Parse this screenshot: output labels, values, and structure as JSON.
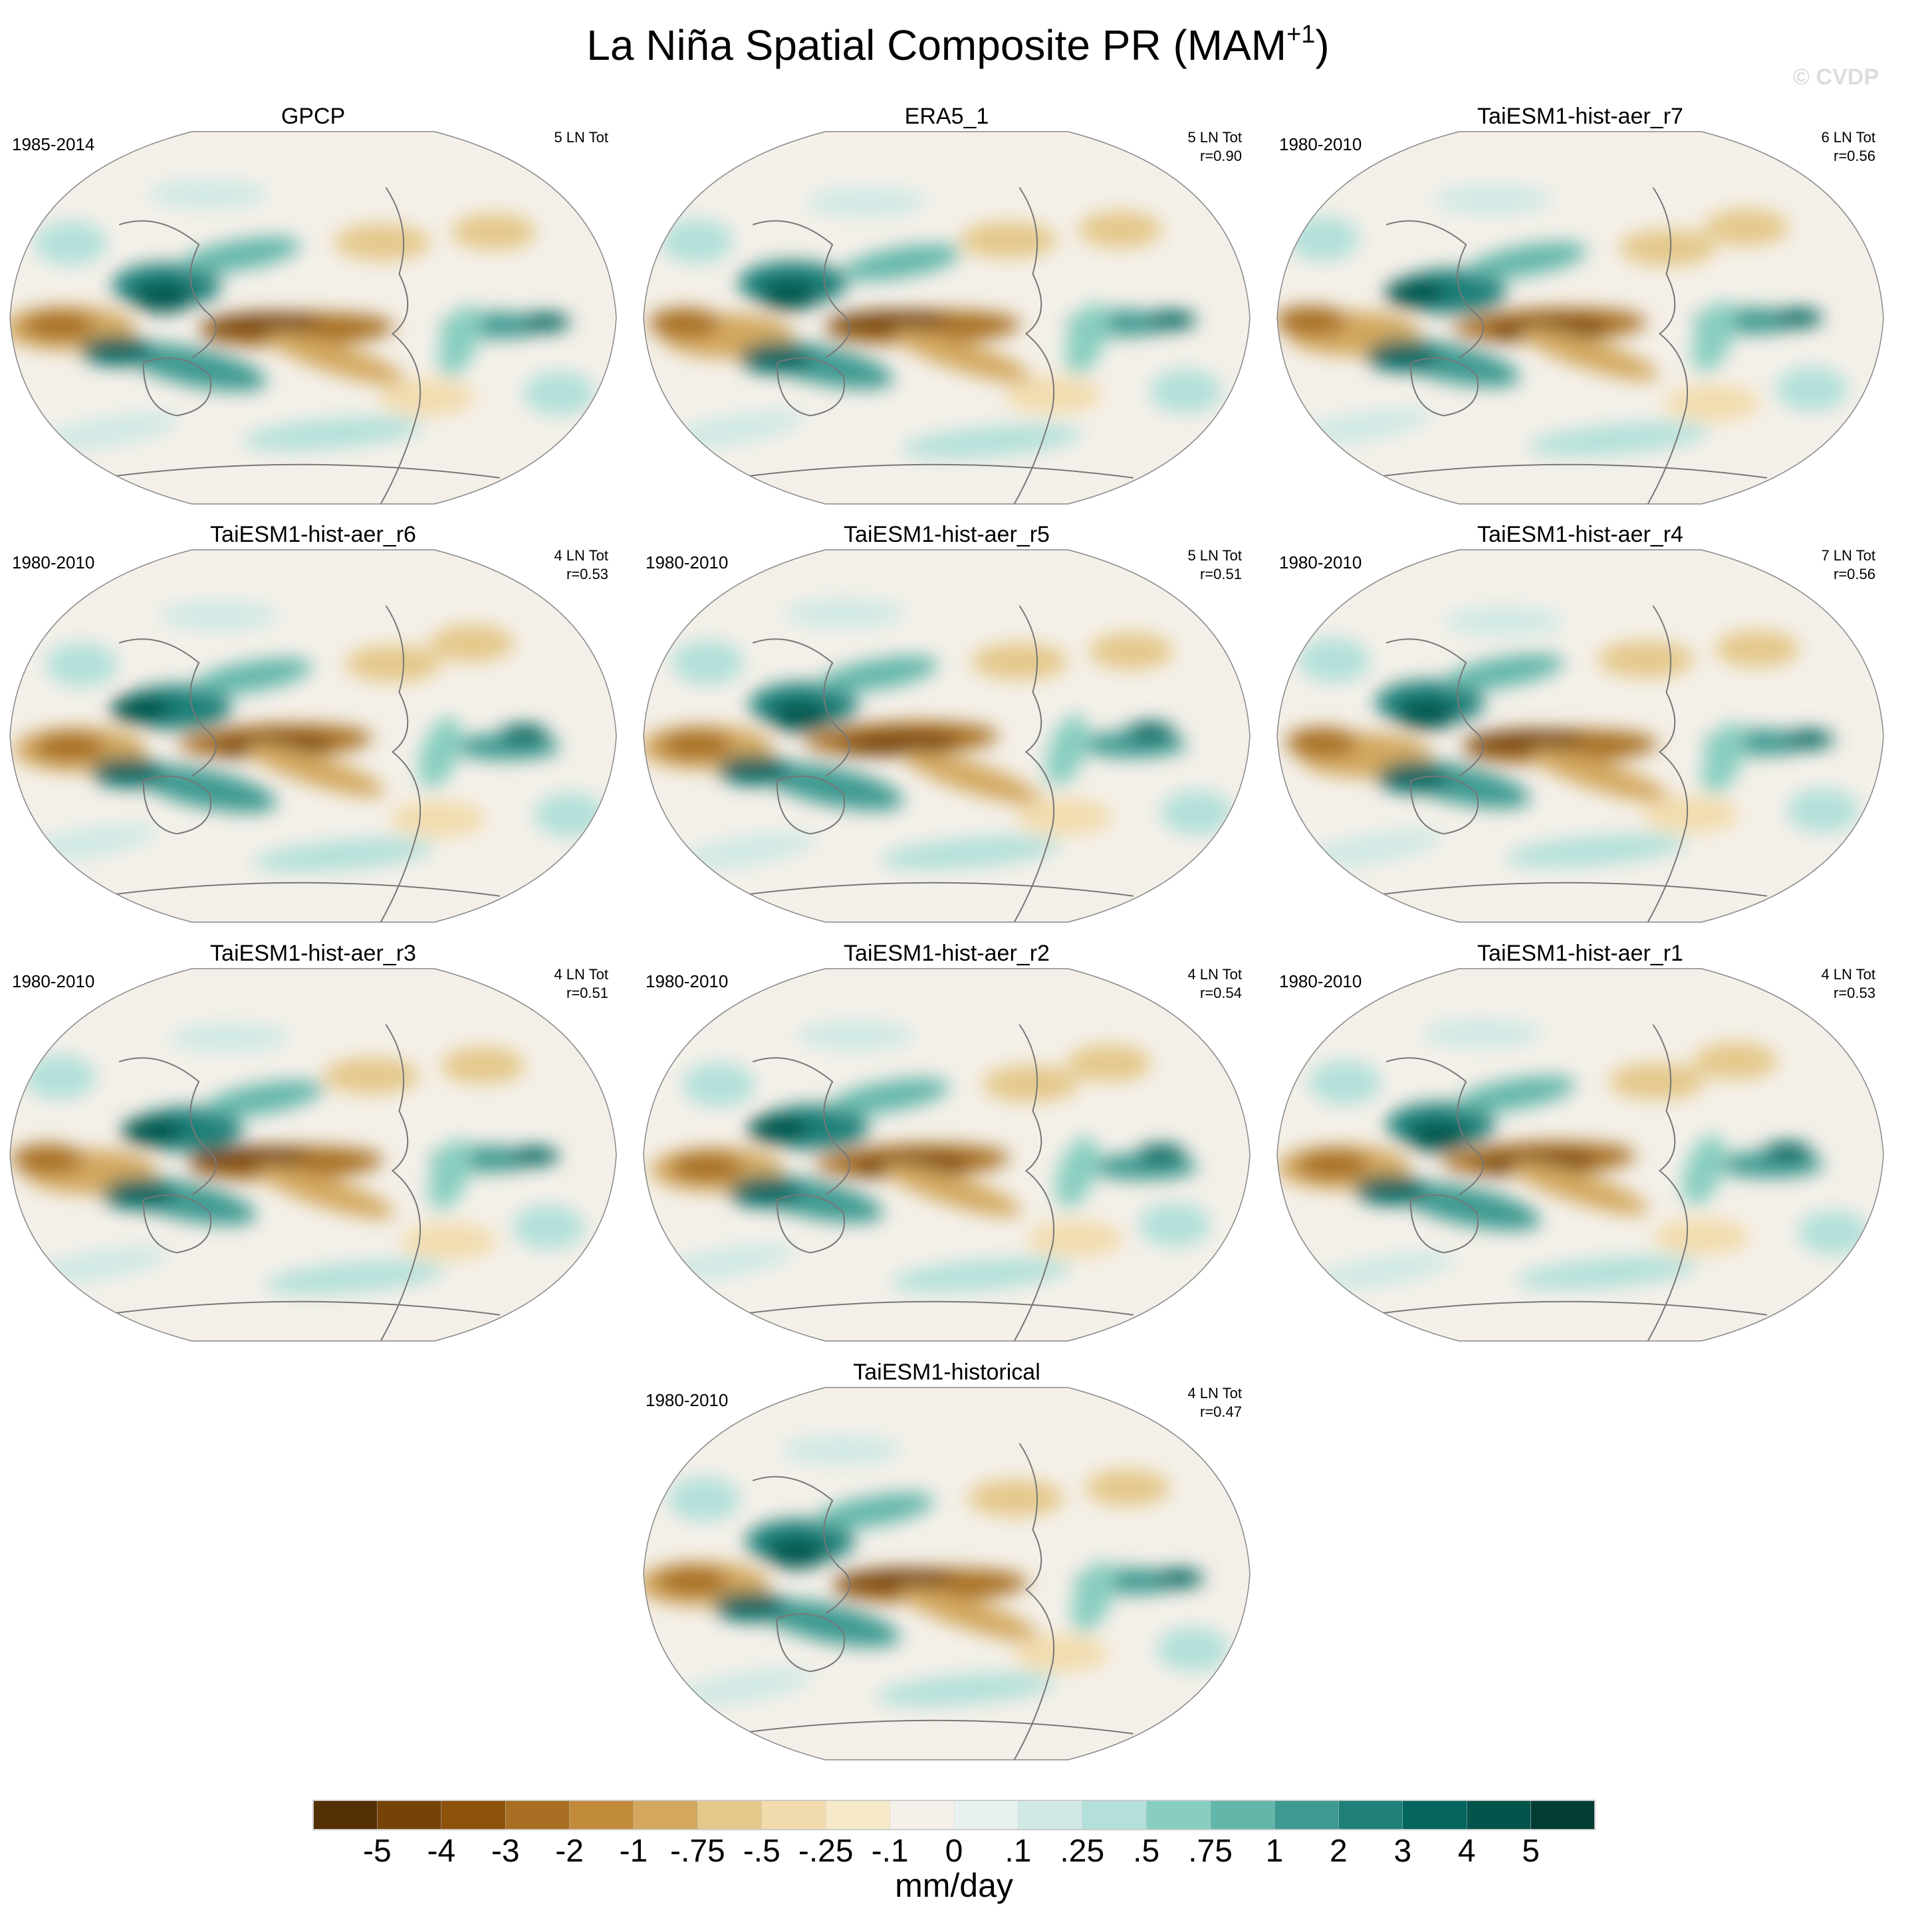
{
  "chart_data": {
    "type": "heatmap",
    "title": "La Niña Spatial Composite PR (MAM",
    "title_superscript": "+1",
    "title_close": ")",
    "watermark": "© CVDP",
    "colorbar": {
      "units": "mm/day",
      "tick_labels": [
        "-5",
        "-4",
        "-3",
        "-2",
        "-1",
        "-.75",
        "-.5",
        "-.25",
        "-.1",
        "0",
        ".1",
        ".25",
        ".5",
        ".75",
        "1",
        "2",
        "3",
        "4",
        "5"
      ],
      "colors": [
        "#543005",
        "#754208",
        "#8c510a",
        "#a86f22",
        "#c28b3a",
        "#d3a85e",
        "#e4c88a",
        "#f2dcae",
        "#f6e9c7",
        "#f4f0e9",
        "#e7f2f0",
        "#d0e9e5",
        "#b3e0da",
        "#87cec0",
        "#62b6aa",
        "#3d9a91",
        "#1e8079",
        "#03655e",
        "#03544b",
        "#013d33"
      ]
    },
    "panels": [
      {
        "title": "GPCP",
        "period": "1985-2014",
        "events": "5 LN Tot",
        "r": ""
      },
      {
        "title": "ERA5_1",
        "period": "",
        "events": "5 LN Tot",
        "r": "r=0.90"
      },
      {
        "title": "TaiESM1-hist-aer_r7",
        "period": "1980-2010",
        "events": "6 LN Tot",
        "r": "r=0.56"
      },
      {
        "title": "TaiESM1-hist-aer_r6",
        "period": "1980-2010",
        "events": "4 LN Tot",
        "r": "r=0.53"
      },
      {
        "title": "TaiESM1-hist-aer_r5",
        "period": "1980-2010",
        "events": "5 LN Tot",
        "r": "r=0.51"
      },
      {
        "title": "TaiESM1-hist-aer_r4",
        "period": "1980-2010",
        "events": "7 LN Tot",
        "r": "r=0.56"
      },
      {
        "title": "TaiESM1-hist-aer_r3",
        "period": "1980-2010",
        "events": "4 LN Tot",
        "r": "r=0.51"
      },
      {
        "title": "TaiESM1-hist-aer_r2",
        "period": "1980-2010",
        "events": "4 LN Tot",
        "r": "r=0.54"
      },
      {
        "title": "TaiESM1-hist-aer_r1",
        "period": "1980-2010",
        "events": "4 LN Tot",
        "r": "r=0.53"
      },
      {
        "title": "TaiESM1-historical",
        "period": "1980-2010",
        "events": "4 LN Tot",
        "r": "r=0.47"
      }
    ]
  }
}
